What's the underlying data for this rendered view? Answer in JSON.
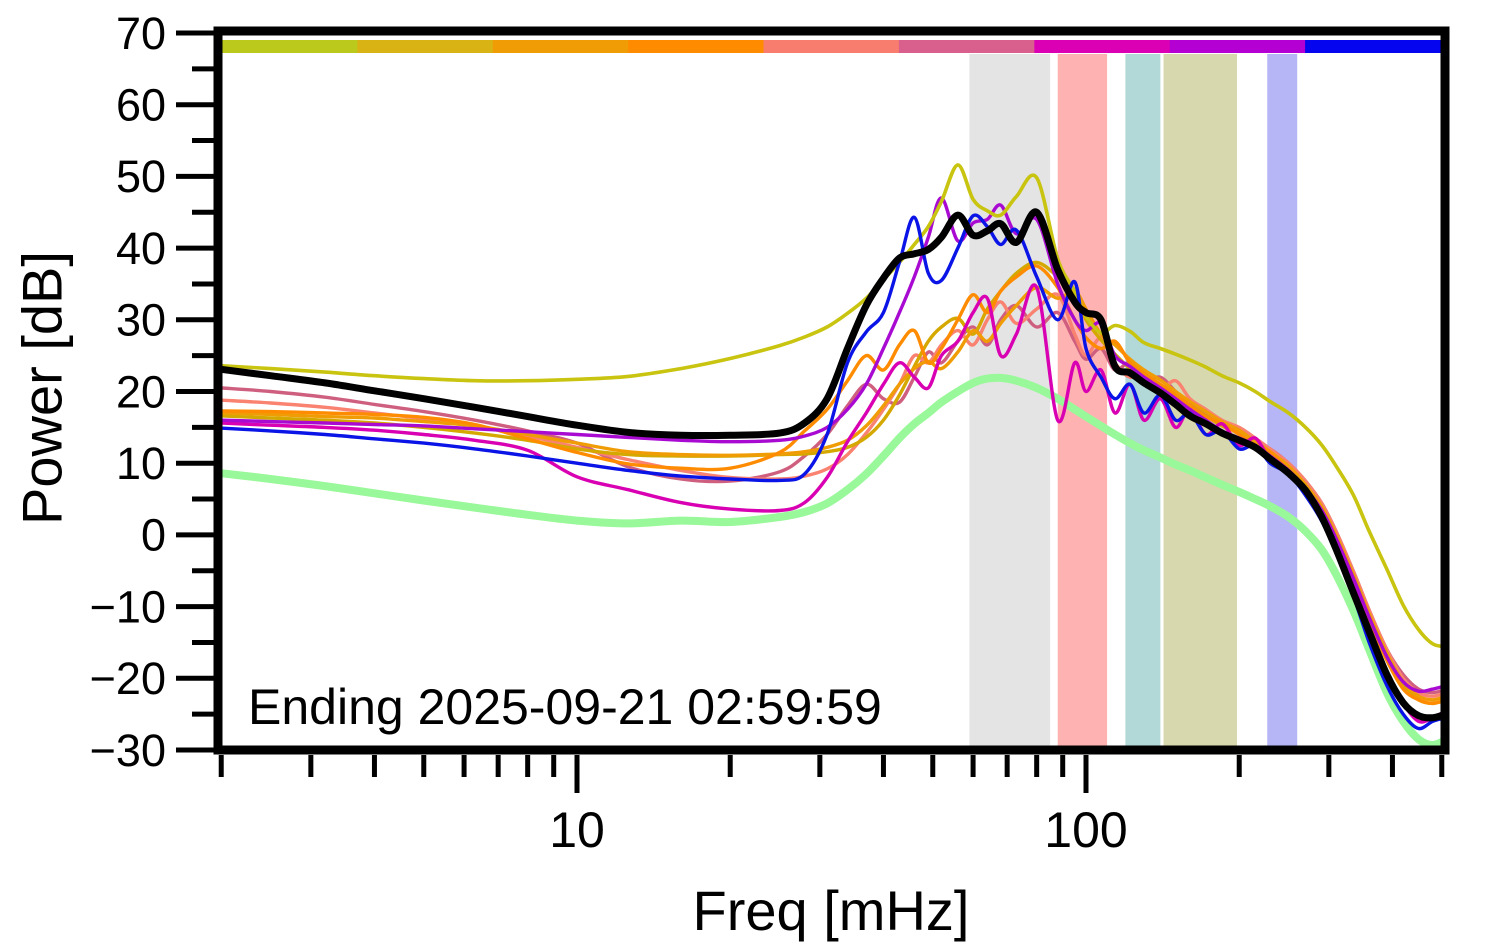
{
  "figure": {
    "background": "#ffffff",
    "annotation": "Ending 2025-09-21 02:59:59"
  },
  "chart_data": {
    "type": "line",
    "title": "",
    "xlabel": "Freq [mHz]",
    "ylabel": "Power [dB]",
    "x_scale": "log",
    "xlim": [
      2,
      516
    ],
    "ylim": [
      -30,
      70
    ],
    "grid": false,
    "legend": "none",
    "annotation": "Ending 2025-09-21 02:59:59",
    "x_major_ticks": [
      {
        "v": 10,
        "label": "10"
      },
      {
        "v": 100,
        "label": "100"
      }
    ],
    "x_minor_ticks": [
      2,
      3,
      4,
      5,
      6,
      7,
      8,
      9,
      20,
      30,
      40,
      50,
      60,
      70,
      80,
      90,
      200,
      300,
      400,
      500
    ],
    "y_major_ticks": [
      {
        "v": 70,
        "label": "70"
      },
      {
        "v": 60,
        "label": "60"
      },
      {
        "v": 50,
        "label": "50"
      },
      {
        "v": 40,
        "label": "40"
      },
      {
        "v": 30,
        "label": "30"
      },
      {
        "v": 20,
        "label": "20"
      },
      {
        "v": 10,
        "label": "10"
      },
      {
        "v": 0,
        "label": "0"
      },
      {
        "v": -10,
        "label": "−10"
      },
      {
        "v": -20,
        "label": "−20"
      },
      {
        "v": -30,
        "label": "−30"
      }
    ],
    "y_minor_ticks": [
      65,
      55,
      45,
      35,
      25,
      15,
      5,
      -5,
      -15,
      -25
    ],
    "top_color_strip_segments": [
      "#bac91b",
      "#d9b213",
      "#f09c05",
      "#ff8c00",
      "#f87d6e",
      "#d9608c",
      "#dc00b4",
      "#b400d2",
      "#0505f0"
    ],
    "shaded_bands": [
      {
        "from_mHz": 59,
        "to_mHz": 85,
        "color": "#e4e4e4"
      },
      {
        "from_mHz": 88,
        "to_mHz": 110,
        "color": "#ffb2b2"
      },
      {
        "from_mHz": 119.5,
        "to_mHz": 140,
        "color": "#b2d8d8"
      },
      {
        "from_mHz": 142,
        "to_mHz": 198,
        "color": "#d8d8ae"
      },
      {
        "from_mHz": 227,
        "to_mHz": 260,
        "color": "#b6b6f6"
      }
    ],
    "x_mHz": [
      2,
      2.5,
      3.2,
      4,
      5,
      6.3,
      8,
      10,
      12.6,
      16,
      20,
      25,
      28,
      31,
      34,
      37,
      40,
      43,
      46,
      49,
      52,
      56,
      60,
      64,
      68,
      73,
      80,
      88,
      95,
      100,
      107,
      114,
      122,
      130,
      140,
      150,
      160,
      172,
      185,
      200,
      215,
      230,
      250,
      270,
      290,
      310,
      335,
      360,
      390,
      420,
      450,
      480,
      510
    ],
    "series": [
      {
        "name": "pale-green-reference",
        "color": "#99f899",
        "width": 8,
        "values": [
          8.6,
          7.8,
          6.8,
          5.8,
          4.8,
          3.8,
          2.8,
          2.0,
          1.6,
          2.0,
          1.8,
          2.5,
          3.2,
          4.4,
          6.3,
          8.5,
          11.0,
          13.5,
          15.5,
          17.0,
          18.5,
          20.0,
          21.2,
          21.8,
          21.9,
          21.5,
          20.5,
          19.0,
          17.5,
          16.5,
          15.2,
          14.0,
          12.8,
          11.8,
          10.8,
          9.8,
          9.0,
          8.0,
          7.0,
          6.0,
          5.0,
          4.0,
          2.5,
          0.5,
          -2.0,
          -5.5,
          -10.5,
          -16.0,
          -22.0,
          -26.0,
          -28.5,
          -29.3,
          -28.6
        ]
      },
      {
        "name": "day-rose",
        "color": "#cf5f7f",
        "width": 3.4,
        "values": [
          20.5,
          20.0,
          19.2,
          18.2,
          17.2,
          16.0,
          14.5,
          12.8,
          9.5,
          7.8,
          7.5,
          8.8,
          11.0,
          14.0,
          18.0,
          21.0,
          19.0,
          18.5,
          22.0,
          25.5,
          24.0,
          27.0,
          29.0,
          26.5,
          30.0,
          32.0,
          29.0,
          31.0,
          27.0,
          24.5,
          26.0,
          23.0,
          24.0,
          21.5,
          22.0,
          20.0,
          18.5,
          17.0,
          16.0,
          14.5,
          13.0,
          12.0,
          10.0,
          7.5,
          4.5,
          0.5,
          -5.0,
          -10.5,
          -16.0,
          -19.5,
          -21.5,
          -22.0,
          -21.5
        ]
      },
      {
        "name": "day-salmon",
        "color": "#f98270",
        "width": 3.4,
        "values": [
          18.8,
          18.4,
          17.8,
          17.0,
          16.2,
          15.2,
          13.8,
          12.2,
          10.5,
          9.0,
          8.0,
          7.8,
          8.2,
          9.2,
          11.2,
          14.2,
          17.5,
          21.0,
          25.0,
          24.0,
          26.5,
          28.5,
          26.5,
          30.0,
          32.5,
          29.5,
          31.5,
          33.5,
          28.0,
          25.0,
          27.5,
          24.0,
          22.0,
          23.0,
          20.5,
          21.5,
          19.0,
          17.5,
          16.0,
          15.0,
          13.5,
          12.0,
          10.0,
          7.5,
          4.5,
          0.5,
          -5.0,
          -10.5,
          -16.0,
          -20.0,
          -22.0,
          -22.5,
          -22.0
        ]
      },
      {
        "name": "day-gold",
        "color": "#d5a800",
        "width": 3.4,
        "values": [
          16.6,
          16.3,
          16.0,
          15.6,
          15.0,
          14.2,
          13.2,
          12.0,
          11.2,
          11.0,
          11.0,
          11.2,
          11.3,
          11.6,
          12.2,
          13.6,
          16.0,
          19.5,
          23.5,
          27.0,
          29.0,
          30.2,
          28.0,
          31.5,
          34.0,
          36.5,
          38.0,
          36.0,
          33.5,
          30.0,
          27.2,
          25.2,
          23.2,
          22.0,
          20.6,
          19.2,
          18.0,
          16.6,
          15.2,
          14.2,
          12.6,
          11.2,
          9.2,
          6.6,
          3.6,
          -0.5,
          -6.0,
          -11.5,
          -17.0,
          -21.0,
          -23.0,
          -23.5,
          -23.0
        ]
      },
      {
        "name": "day-orange-gold",
        "color": "#f09c05",
        "width": 3.4,
        "values": [
          17.0,
          16.8,
          16.5,
          16.3,
          15.8,
          15.2,
          14.0,
          12.8,
          11.6,
          11.2,
          11.1,
          11.3,
          11.6,
          12.2,
          13.2,
          15.2,
          18.0,
          21.0,
          23.2,
          24.2,
          23.2,
          25.5,
          28.5,
          27.0,
          29.5,
          32.0,
          34.5,
          33.0,
          34.0,
          31.5,
          28.0,
          26.5,
          24.5,
          23.0,
          21.6,
          20.0,
          18.6,
          17.2,
          15.8,
          14.6,
          13.0,
          11.6,
          9.6,
          7.0,
          4.0,
          0.0,
          -5.5,
          -11.0,
          -16.5,
          -20.5,
          -22.5,
          -23.0,
          -22.5
        ]
      },
      {
        "name": "day-orange",
        "color": "#ff8c00",
        "width": 3.4,
        "values": [
          17.3,
          17.2,
          17.0,
          16.8,
          16.4,
          15.4,
          13.4,
          11.5,
          9.9,
          9.3,
          9.3,
          11.5,
          14.5,
          17.5,
          21.5,
          25.0,
          23.0,
          26.5,
          28.5,
          24.0,
          26.0,
          30.0,
          33.5,
          31.0,
          34.0,
          36.0,
          37.5,
          34.5,
          30.0,
          27.5,
          26.0,
          27.0,
          24.0,
          22.5,
          21.0,
          19.5,
          18.0,
          16.5,
          15.5,
          14.0,
          12.5,
          11.5,
          9.0,
          6.5,
          3.5,
          -1.0,
          -6.5,
          -12.0,
          -17.5,
          -21.5,
          -23.0,
          -23.5,
          -23.0
        ]
      },
      {
        "name": "day-magenta",
        "color": "#d800b2",
        "width": 3.4,
        "values": [
          15.6,
          15.3,
          15.0,
          14.6,
          14.0,
          13.2,
          11.8,
          8.1,
          6.3,
          4.5,
          3.6,
          3.4,
          4.5,
          8.0,
          13.0,
          17.0,
          21.0,
          24.0,
          22.0,
          20.5,
          25.0,
          27.0,
          31.0,
          33.0,
          25.0,
          28.0,
          34.5,
          16.0,
          24.0,
          20.0,
          23.0,
          17.0,
          21.0,
          16.0,
          19.0,
          15.0,
          17.5,
          14.0,
          15.5,
          12.5,
          13.5,
          10.5,
          9.0,
          6.0,
          3.0,
          -1.5,
          -7.0,
          -13.0,
          -19.0,
          -23.5,
          -26.0,
          -25.5,
          -24.5
        ]
      },
      {
        "name": "day-purple",
        "color": "#a80ad2",
        "width": 3.4,
        "values": [
          16.0,
          15.8,
          15.6,
          15.4,
          15.2,
          14.8,
          14.4,
          14.0,
          13.6,
          13.2,
          13.0,
          13.2,
          13.8,
          15.0,
          17.5,
          21.0,
          26.0,
          31.0,
          36.0,
          41.5,
          47.0,
          41.0,
          43.5,
          44.0,
          46.0,
          42.0,
          44.0,
          35.0,
          30.0,
          28.5,
          29.5,
          25.0,
          23.5,
          22.0,
          20.5,
          19.0,
          17.5,
          16.0,
          14.5,
          13.5,
          12.5,
          11.0,
          9.0,
          6.5,
          3.5,
          -0.5,
          -6.0,
          -11.5,
          -17.0,
          -20.5,
          -21.8,
          -21.5,
          -21.0
        ]
      },
      {
        "name": "day-yellow-green",
        "color": "#c8c410",
        "width": 3.6,
        "values": [
          23.6,
          23.2,
          22.7,
          22.2,
          21.8,
          21.5,
          21.5,
          21.7,
          22.1,
          23.2,
          24.6,
          26.4,
          27.6,
          29.0,
          30.9,
          33.0,
          35.6,
          38.0,
          40.5,
          43.0,
          46.5,
          51.6,
          46.8,
          45.2,
          44.6,
          47.2,
          49.8,
          38.5,
          34.0,
          30.5,
          28.2,
          29.2,
          28.4,
          26.8,
          26.0,
          25.2,
          24.4,
          23.4,
          22.2,
          21.2,
          20.0,
          18.6,
          17.0,
          15.0,
          12.6,
          9.6,
          5.6,
          0.5,
          -4.8,
          -9.8,
          -13.2,
          -15.2,
          -15.6
        ]
      },
      {
        "name": "day-blue",
        "color": "#0a14e6",
        "width": 3.4,
        "values": [
          14.9,
          14.5,
          14.0,
          13.4,
          12.8,
          12.0,
          11.0,
          10.0,
          9.0,
          8.2,
          7.8,
          7.6,
          8.5,
          14.0,
          24.0,
          28.3,
          31.0,
          38.0,
          44.3,
          36.5,
          35.5,
          40.0,
          44.5,
          43.0,
          40.5,
          42.5,
          36.0,
          30.0,
          35.3,
          26.0,
          22.0,
          19.0,
          21.0,
          17.0,
          19.5,
          16.0,
          17.0,
          14.0,
          14.5,
          12.0,
          12.5,
          10.0,
          8.5,
          5.5,
          2.0,
          -2.5,
          -8.5,
          -15.0,
          -21.0,
          -25.0,
          -27.0,
          -26.0,
          -25.5
        ]
      },
      {
        "name": "current-day-black",
        "color": "#000000",
        "width": 7,
        "values": [
          23.1,
          22.2,
          21.2,
          20.1,
          19.0,
          17.8,
          16.5,
          15.3,
          14.3,
          13.9,
          13.9,
          14.2,
          15.6,
          19.0,
          26.0,
          32.0,
          35.8,
          38.6,
          39.2,
          39.8,
          41.5,
          44.6,
          41.8,
          42.4,
          43.4,
          40.8,
          45.0,
          37.0,
          32.5,
          31.0,
          30.0,
          23.5,
          22.6,
          21.2,
          19.8,
          18.2,
          16.6,
          15.5,
          14.2,
          13.2,
          12.2,
          10.6,
          8.6,
          6.2,
          2.6,
          -2.0,
          -8.0,
          -13.5,
          -19.5,
          -23.4,
          -25.2,
          -25.5,
          -25.0
        ]
      }
    ]
  }
}
